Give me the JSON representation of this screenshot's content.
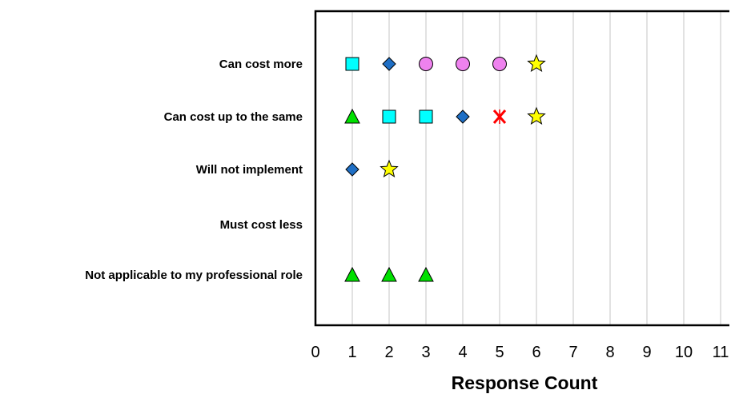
{
  "chart_data": {
    "type": "scatter",
    "xlabel": "Response Count",
    "xlim": [
      0,
      11
    ],
    "x_ticks": [
      0,
      1,
      2,
      3,
      4,
      5,
      6,
      7,
      8,
      9,
      10,
      11
    ],
    "grid": "vertical",
    "categories": [
      "Can cost more",
      "Can cost up to the same",
      "Will not implement",
      "Must cost less",
      "Not applicable to my professional role"
    ],
    "points": [
      {
        "category": 0,
        "x": 1,
        "marker": "square",
        "color": "#00ffff"
      },
      {
        "category": 0,
        "x": 2,
        "marker": "diamond",
        "color": "#1f6fc5"
      },
      {
        "category": 0,
        "x": 3,
        "marker": "circle",
        "color": "#ee82ee"
      },
      {
        "category": 0,
        "x": 4,
        "marker": "circle",
        "color": "#ee82ee"
      },
      {
        "category": 0,
        "x": 5,
        "marker": "circle",
        "color": "#ee82ee"
      },
      {
        "category": 0,
        "x": 6,
        "marker": "star",
        "color": "#ffff00"
      },
      {
        "category": 1,
        "x": 1,
        "marker": "triangle",
        "color": "#00e000"
      },
      {
        "category": 1,
        "x": 2,
        "marker": "square",
        "color": "#00ffff"
      },
      {
        "category": 1,
        "x": 3,
        "marker": "square",
        "color": "#00ffff"
      },
      {
        "category": 1,
        "x": 4,
        "marker": "diamond",
        "color": "#1f6fc5"
      },
      {
        "category": 1,
        "x": 5,
        "marker": "x",
        "color": "#ff0000"
      },
      {
        "category": 1,
        "x": 6,
        "marker": "star",
        "color": "#ffff00"
      },
      {
        "category": 2,
        "x": 1,
        "marker": "diamond",
        "color": "#1f6fc5"
      },
      {
        "category": 2,
        "x": 2,
        "marker": "star",
        "color": "#ffff00"
      },
      {
        "category": 4,
        "x": 1,
        "marker": "triangle",
        "color": "#00e000"
      },
      {
        "category": 4,
        "x": 2,
        "marker": "triangle",
        "color": "#00e000"
      },
      {
        "category": 4,
        "x": 3,
        "marker": "triangle",
        "color": "#00e000"
      }
    ]
  }
}
